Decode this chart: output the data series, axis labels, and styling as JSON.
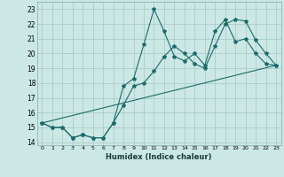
{
  "xlabel": "Humidex (Indice chaleur)",
  "bg_color": "#cce8e5",
  "grid_color": "#aaccca",
  "line_color": "#1a6b6b",
  "xlim": [
    -0.5,
    23.5
  ],
  "ylim": [
    13.8,
    23.5
  ],
  "yticks": [
    14,
    15,
    16,
    17,
    18,
    19,
    20,
    21,
    22,
    23
  ],
  "xticks": [
    0,
    1,
    2,
    3,
    4,
    5,
    6,
    7,
    8,
    9,
    10,
    11,
    12,
    13,
    14,
    15,
    16,
    17,
    18,
    19,
    20,
    21,
    22,
    23
  ],
  "line1_x": [
    0,
    1,
    2,
    3,
    4,
    5,
    6,
    7,
    8,
    9,
    10,
    11,
    12,
    13,
    14,
    15,
    16,
    17,
    18,
    19,
    20,
    21,
    22,
    23
  ],
  "line1_y": [
    15.3,
    15.0,
    15.0,
    14.3,
    14.5,
    14.3,
    14.3,
    15.3,
    17.8,
    18.3,
    20.6,
    23.0,
    21.5,
    19.8,
    19.5,
    20.0,
    19.2,
    21.5,
    22.3,
    20.8,
    21.0,
    20.0,
    19.3,
    19.2
  ],
  "line2_x": [
    0,
    1,
    2,
    3,
    4,
    5,
    6,
    7,
    8,
    9,
    10,
    11,
    12,
    13,
    14,
    15,
    16,
    17,
    18,
    19,
    20,
    21,
    22,
    23
  ],
  "line2_y": [
    15.3,
    15.0,
    15.0,
    14.3,
    14.5,
    14.3,
    14.3,
    15.3,
    16.5,
    17.8,
    18.0,
    18.8,
    19.8,
    20.5,
    20.0,
    19.3,
    19.0,
    20.5,
    22.0,
    22.3,
    22.2,
    20.9,
    20.0,
    19.2
  ],
  "line3_x": [
    0,
    23
  ],
  "line3_y": [
    15.3,
    19.2
  ]
}
